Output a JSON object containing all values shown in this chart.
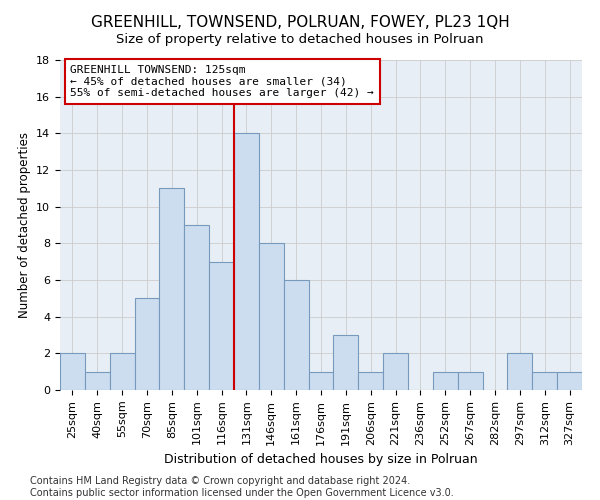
{
  "title": "GREENHILL, TOWNSEND, POLRUAN, FOWEY, PL23 1QH",
  "subtitle": "Size of property relative to detached houses in Polruan",
  "xlabel": "Distribution of detached houses by size in Polruan",
  "ylabel": "Number of detached properties",
  "categories": [
    "25sqm",
    "40sqm",
    "55sqm",
    "70sqm",
    "85sqm",
    "101sqm",
    "116sqm",
    "131sqm",
    "146sqm",
    "161sqm",
    "176sqm",
    "191sqm",
    "206sqm",
    "221sqm",
    "236sqm",
    "252sqm",
    "267sqm",
    "282sqm",
    "297sqm",
    "312sqm",
    "327sqm"
  ],
  "values": [
    2,
    1,
    2,
    5,
    11,
    9,
    7,
    14,
    8,
    6,
    1,
    3,
    1,
    2,
    0,
    1,
    1,
    0,
    2,
    1,
    1
  ],
  "bar_color": "#ccddf0",
  "bar_edge_color": "#7799bb",
  "bar_linewidth": 0.8,
  "vline_color": "#cc0000",
  "vline_linewidth": 1.5,
  "annotation_line1": "GREENHILL TOWNSEND: 125sqm",
  "annotation_line2": "← 45% of detached houses are smaller (34)",
  "annotation_line3": "55% of semi-detached houses are larger (42) →",
  "annotation_box_color": "#ffffff",
  "annotation_box_edge": "#cc0000",
  "ylim": [
    0,
    18
  ],
  "yticks": [
    0,
    2,
    4,
    6,
    8,
    10,
    12,
    14,
    16,
    18
  ],
  "grid_color": "#cccccc",
  "background_color": "#ffffff",
  "plot_bg_color": "#e8eef5",
  "footer_text": "Contains HM Land Registry data © Crown copyright and database right 2024.\nContains public sector information licensed under the Open Government Licence v3.0.",
  "title_fontsize": 11,
  "subtitle_fontsize": 9.5,
  "xlabel_fontsize": 9,
  "ylabel_fontsize": 8.5,
  "tick_fontsize": 8,
  "annotation_fontsize": 8,
  "footer_fontsize": 7
}
